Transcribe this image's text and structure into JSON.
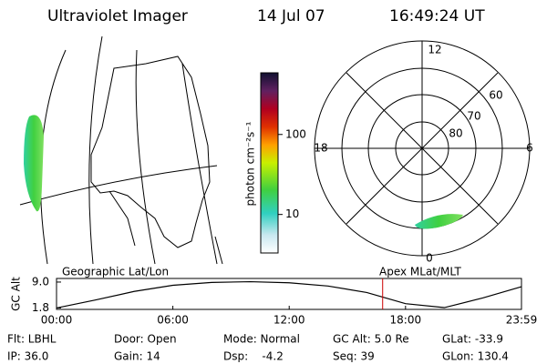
{
  "header": {
    "title": "Ultraviolet Imager",
    "date": "14 Jul 07",
    "time": "16:49:24 UT"
  },
  "colorbar": {
    "label": "photon cm⁻²s⁻¹",
    "log": true,
    "lim": [
      3.3,
      590
    ],
    "ticks": [
      10,
      100
    ]
  },
  "polar": {
    "mlt_labels": [
      "12",
      "18",
      "6",
      "0"
    ],
    "lat_labels": [
      "80",
      "70",
      "60"
    ]
  },
  "panels": {
    "left": "Geographic Lat/Lon",
    "right": "Apex MLat/MLT"
  },
  "chart_data": {
    "type": "line",
    "ylabel": "GC Alt",
    "x": [
      0,
      2,
      4,
      6,
      8,
      10,
      12,
      14,
      16,
      18,
      20,
      22,
      23.98
    ],
    "series": [
      {
        "color": "#000000",
        "values": [
          1.8,
          4.0,
          6.4,
          8.1,
          8.9,
          9.1,
          8.8,
          7.9,
          6.1,
          3.0,
          1.9,
          4.6,
          7.7
        ]
      }
    ],
    "xlim": [
      0,
      23.98
    ],
    "xticks": [
      {
        "value": 0,
        "label": "00:00"
      },
      {
        "value": 6,
        "label": "06:00"
      },
      {
        "value": 12,
        "label": "12:00"
      },
      {
        "value": 18,
        "label": "18:00"
      },
      {
        "value": 23.98,
        "label": "23:59"
      }
    ],
    "ylim": [
      1.4,
      10
    ],
    "yticks": [
      1.8,
      {
        "value": 9,
        "label": "9.0"
      }
    ],
    "marker_x": 16.82,
    "marker_color": "#cc0000"
  },
  "footer": [
    [
      "Flt: LBHL",
      "Door: Open",
      "Mode: Normal",
      "GC Alt: 5.0 Re",
      "GLat: -33.9"
    ],
    [
      "IP: 36.0",
      "Gain: 14",
      "Dsp:    -4.2",
      "Seq: 39",
      "GLon: 130.4"
    ]
  ]
}
